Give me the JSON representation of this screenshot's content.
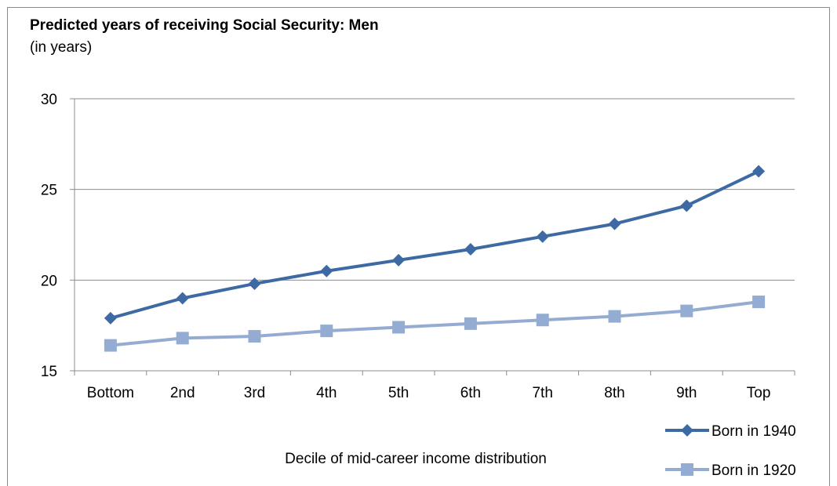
{
  "chart_data": {
    "type": "line",
    "title": "Predicted years of receiving Social Security: Men",
    "subtitle": "(in years)",
    "xlabel": "Decile of mid-career income distribution",
    "ylabel": "",
    "categories": [
      "Bottom",
      "2nd",
      "3rd",
      "4th",
      "5th",
      "6th",
      "7th",
      "8th",
      "9th",
      "Top"
    ],
    "ylim": [
      15,
      30
    ],
    "yticks": [
      15,
      20,
      25,
      30
    ],
    "grid": true,
    "legend_position": "bottom-right",
    "series": [
      {
        "name": "Born in 1940",
        "color": "#3d6aa3",
        "marker": "diamond",
        "values": [
          17.9,
          19.0,
          19.8,
          20.5,
          21.1,
          21.7,
          22.4,
          23.1,
          24.1,
          26.0
        ]
      },
      {
        "name": "Born in 1920",
        "color": "#95acd2",
        "marker": "square",
        "values": [
          16.4,
          16.8,
          16.9,
          17.2,
          17.4,
          17.6,
          17.8,
          18.0,
          18.3,
          18.8
        ]
      }
    ]
  }
}
